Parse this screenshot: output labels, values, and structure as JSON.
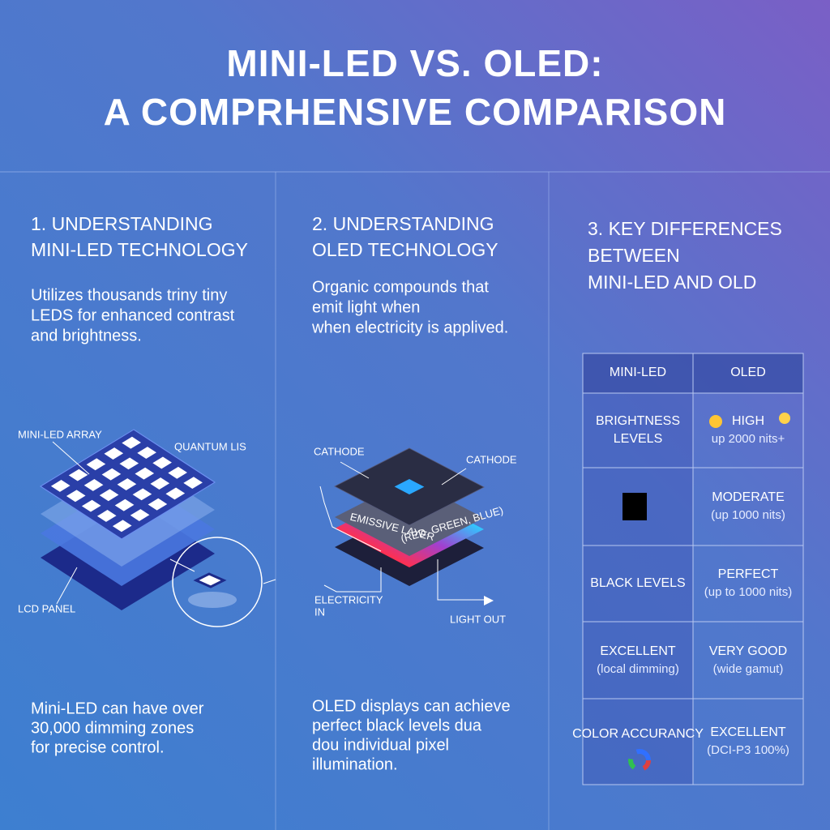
{
  "header": {
    "title": [
      "MINI-LED VS. OLED:",
      "A COMPRHENSIVE COMPARISON"
    ]
  },
  "sections": [
    {
      "heading": [
        "1. UNDERSTANDING",
        "MINI-LED TECHNOLOGY"
      ],
      "body": [
        "Utilizes thousands triny tiny",
        "LEDS for enhanced contrast",
        "and brightness."
      ],
      "diagram_labels": [
        [
          "MINI-LED ARRAY"
        ],
        [
          "QUANTUM LIS"
        ],
        [
          "LCD PANEL"
        ]
      ],
      "footer": [
        "Mini-LED can have over",
        "30,000 dimming zones",
        "for precise control."
      ]
    },
    {
      "heading": [
        "2. UNDERSTANDING",
        "OLED TECHNOLOGY"
      ],
      "body": [
        "Organic compounds that",
        "emit light when",
        "when electricity is applived."
      ],
      "diagram_labels": [
        [
          "CATHODE"
        ],
        [
          "CATHODE"
        ],
        [
          "EMISSIVE LAYER"
        ],
        [
          "(RED, GREEN, BLUE)"
        ],
        [
          "ELECTRICITY",
          "IN"
        ],
        [
          "LIGHT OUT"
        ]
      ],
      "footer": [
        "OLED displays can achieve",
        "perfect black levels dua",
        "dou individual pixel",
        "illumination."
      ]
    },
    {
      "heading": [
        "3. KEY DIFFERENCES",
        "BETWEEN",
        "MINI-LED AND OLD"
      ],
      "table": {
        "columns": [
          "MINI-LED",
          "OLED"
        ],
        "rows": [
          [
            [
              "BRIGHTNESS",
              "LEVELS"
            ],
            [
              "HIGH",
              "up 2000 nits+"
            ]
          ],
          [
            [],
            [
              "MODERATE",
              "(up 1000 nits)"
            ]
          ],
          [
            [
              "BLACK LEVELS"
            ],
            [
              "PERFECT",
              "(up to 1000 nits)"
            ]
          ],
          [
            [
              "EXCELLENT",
              "(local dimming)"
            ],
            [
              "VERY GOOD",
              "(wide gamut)"
            ]
          ],
          [
            [
              "COLOR ACCURANCY"
            ],
            [
              "EXCELLENT",
              "(DCI-P3 100%)"
            ]
          ]
        ]
      }
    }
  ]
}
